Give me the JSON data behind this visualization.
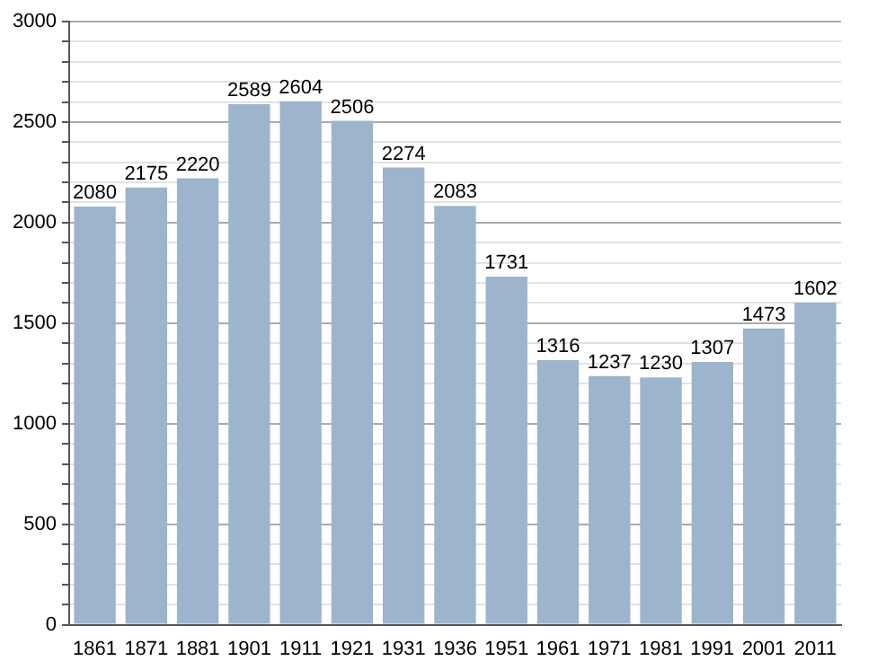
{
  "chart_data": {
    "type": "bar",
    "categories": [
      "1861",
      "1871",
      "1881",
      "1901",
      "1911",
      "1921",
      "1931",
      "1936",
      "1951",
      "1961",
      "1971",
      "1981",
      "1991",
      "2001",
      "2011"
    ],
    "values": [
      2080,
      2175,
      2220,
      2589,
      2604,
      2506,
      2274,
      2083,
      1731,
      1316,
      1237,
      1230,
      1307,
      1473,
      1602
    ],
    "color": "#9db4cd",
    "ylim": [
      0,
      3000
    ],
    "yticks": [
      0,
      {
        "value": 100,
        "label": null
      },
      {
        "value": 200,
        "label": null
      },
      {
        "value": 300,
        "label": null
      },
      {
        "value": 400,
        "label": null
      },
      500,
      {
        "value": 600,
        "label": null
      },
      {
        "value": 700,
        "label": null
      },
      {
        "value": 800,
        "label": null
      },
      {
        "value": 900,
        "label": null
      },
      1000,
      {
        "value": 1100,
        "label": null
      },
      {
        "value": 1200,
        "label": null
      },
      {
        "value": 1300,
        "label": null
      },
      {
        "value": 1400,
        "label": null
      },
      1500,
      {
        "value": 1600,
        "label": null
      },
      {
        "value": 1700,
        "label": null
      },
      {
        "value": 1800,
        "label": null
      },
      {
        "value": 1900,
        "label": null
      },
      2000,
      {
        "value": 2100,
        "label": null
      },
      {
        "value": 2200,
        "label": null
      },
      {
        "value": 2300,
        "label": null
      },
      {
        "value": 2400,
        "label": null
      },
      2500,
      {
        "value": 2600,
        "label": null
      },
      {
        "value": 2700,
        "label": null
      },
      {
        "value": 2800,
        "label": null
      },
      {
        "value": 2900,
        "label": null
      },
      3000
    ],
    "grid": "y",
    "data_labels": true
  }
}
